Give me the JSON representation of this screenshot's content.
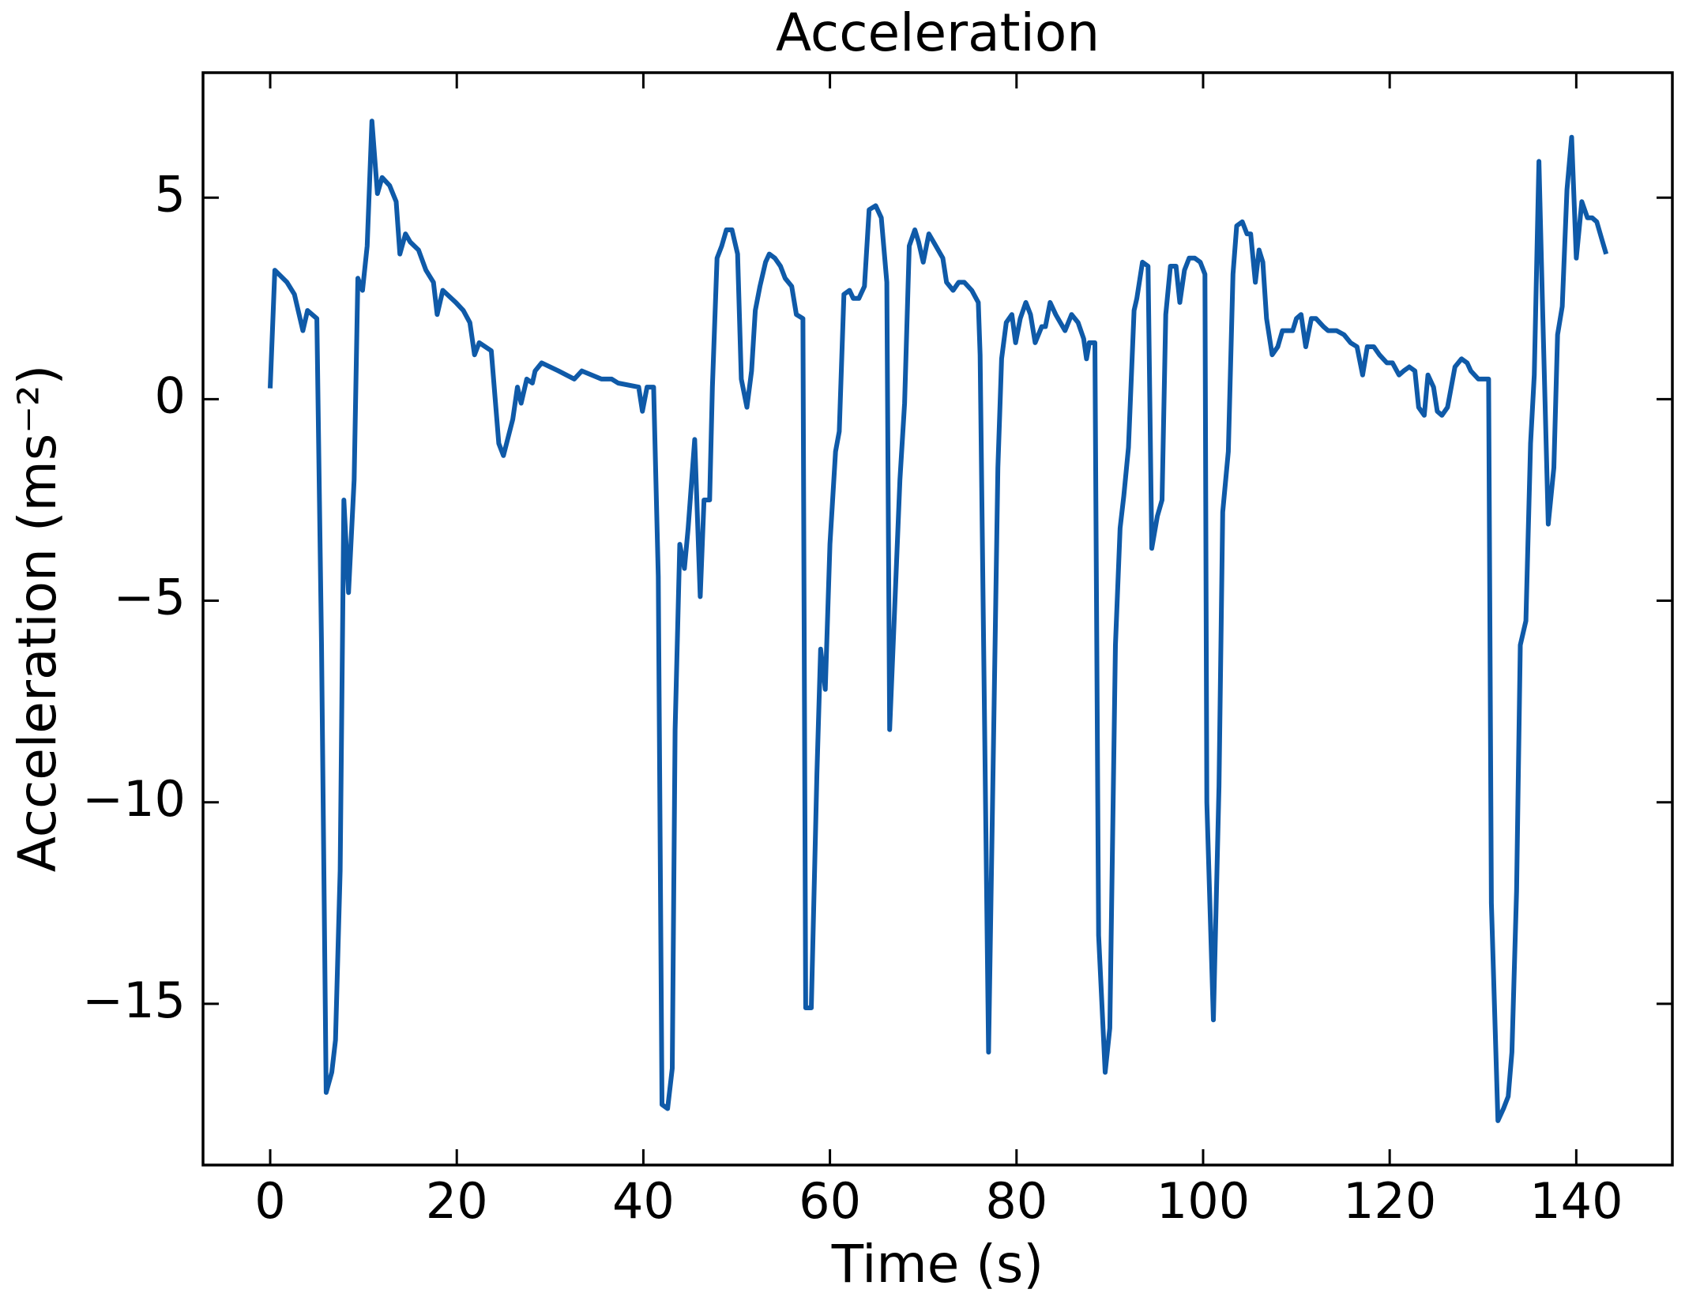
{
  "chart_data": {
    "type": "line",
    "title": "Acceleration",
    "xlabel": "Time (s)",
    "ylabel": "Acceleration (ms⁻²)",
    "xlim": [
      -7.2,
      150.3
    ],
    "ylim": [
      -19.0,
      8.1
    ],
    "xticks": [
      0,
      20,
      40,
      60,
      80,
      100,
      120,
      140
    ],
    "yticks": [
      {
        "value": -15,
        "label": "−15"
      },
      {
        "value": -10,
        "label": "−10"
      },
      {
        "value": -5,
        "label": "−5"
      },
      0,
      5
    ],
    "series": [
      {
        "color": "#0f5aa8",
        "x": [
          0,
          0.5,
          1.8,
          2.6,
          3.5,
          4,
          5,
          5.5,
          6,
          6.6,
          7,
          7.5,
          7.9,
          8.4,
          9,
          9.4,
          9.9,
          10.4,
          10.9,
          11.5,
          12,
          12.8,
          13.5,
          13.9,
          14.5,
          15,
          15.9,
          16.7,
          17.5,
          17.9,
          18.5,
          19.9,
          20.7,
          21.4,
          21.9,
          22.4,
          23.7,
          24.5,
          25,
          26,
          26.5,
          26.9,
          27.5,
          28.1,
          28.4,
          29.1,
          30.9,
          32.6,
          33.4,
          35.5,
          36.6,
          37.3,
          39.5,
          39.9,
          40.4,
          41.1,
          41.6,
          42,
          42.6,
          43.1,
          43.4,
          43.9,
          44.4,
          44.8,
          45.5,
          46.1,
          46.5,
          47.1,
          47.4,
          47.9,
          48.4,
          48.9,
          49.5,
          50.1,
          50.5,
          51.1,
          51.6,
          52,
          52.5,
          53.1,
          53.5,
          54.1,
          54.7,
          55.2,
          55.9,
          56.4,
          57.1,
          57.4,
          58,
          58.6,
          59,
          59.5,
          60,
          60.6,
          61,
          61.5,
          62.1,
          62.5,
          63.1,
          63.7,
          64.2,
          64.9,
          65.5,
          66.1,
          66.4,
          66.9,
          67.5,
          68,
          68.5,
          69.1,
          69.5,
          70,
          70.6,
          71.1,
          72.1,
          72.5,
          73.2,
          73.8,
          74.4,
          75.2,
          75.9,
          76.1,
          77,
          78,
          78.4,
          78.9,
          79.5,
          79.9,
          80.4,
          81,
          81.5,
          82,
          82.7,
          83.1,
          83.6,
          84.2,
          85.2,
          85.9,
          86.6,
          87.2,
          87.5,
          87.8,
          88.4,
          88.8,
          89.5,
          90,
          90.6,
          91.1,
          91.5,
          92,
          92.6,
          92.9,
          93.5,
          94.1,
          94.5,
          95.1,
          95.6,
          96,
          96.5,
          97.1,
          97.5,
          98,
          98.5,
          99.1,
          99.7,
          100.2,
          100.4,
          101.1,
          101.7,
          102.1,
          102.7,
          103.2,
          103.6,
          104.2,
          104.7,
          105.1,
          105.6,
          106,
          106.4,
          106.8,
          107.4,
          108,
          108.5,
          109,
          109.6,
          110,
          110.5,
          111,
          111.6,
          112.1,
          112.9,
          113.4,
          114.3,
          115.1,
          115.8,
          116.5,
          117.1,
          117.6,
          118.3,
          118.9,
          119.7,
          120.3,
          121,
          121.5,
          122.1,
          122.7,
          123.1,
          123.7,
          124.1,
          124.7,
          125.1,
          125.6,
          126.2,
          127,
          127.7,
          128.3,
          128.7,
          129.5,
          130.6,
          130.9,
          131.6,
          132.2,
          132.7,
          133.1,
          133.6,
          134,
          134.6,
          135.1,
          135.5,
          136,
          136.4,
          137,
          137.6,
          138,
          138.5,
          139,
          139.5,
          140,
          140.6,
          141.2,
          141.7,
          142.2,
          142.7,
          143.2
        ],
        "values": [
          0.27,
          3.2,
          2.9,
          2.6,
          1.7,
          2.2,
          2.0,
          -6.1,
          -17.2,
          -16.7,
          -15.9,
          -11.7,
          -2.5,
          -4.8,
          -2.0,
          3.0,
          2.7,
          3.8,
          6.9,
          5.1,
          5.5,
          5.3,
          4.9,
          3.6,
          4.1,
          3.9,
          3.7,
          3.2,
          2.9,
          2.1,
          2.7,
          2.4,
          2.2,
          1.9,
          1.1,
          1.4,
          1.2,
          -1.1,
          -1.4,
          -0.5,
          0.3,
          -0.1,
          0.5,
          0.4,
          0.7,
          0.9,
          0.7,
          0.5,
          0.7,
          0.5,
          0.5,
          0.4,
          0.3,
          -0.3,
          0.3,
          0.3,
          -4.4,
          -17.5,
          -17.6,
          -16.6,
          -8.2,
          -3.6,
          -4.2,
          -3.2,
          -1.0,
          -4.9,
          -2.5,
          -2.5,
          0.3,
          3.5,
          3.8,
          4.2,
          4.2,
          3.6,
          0.5,
          -0.2,
          0.7,
          2.2,
          2.8,
          3.4,
          3.6,
          3.5,
          3.3,
          3.0,
          2.8,
          2.1,
          2.0,
          -15.1,
          -15.1,
          -9.3,
          -6.2,
          -7.2,
          -3.6,
          -1.3,
          -0.8,
          2.6,
          2.7,
          2.5,
          2.5,
          2.8,
          4.7,
          4.8,
          4.5,
          2.9,
          -8.2,
          -5.4,
          -2.0,
          -0.1,
          3.8,
          4.2,
          3.9,
          3.4,
          4.1,
          3.9,
          3.5,
          2.9,
          2.7,
          2.9,
          2.9,
          2.7,
          2.4,
          1.1,
          -16.2,
          -1.7,
          1.0,
          1.9,
          2.1,
          1.4,
          2.0,
          2.4,
          2.1,
          1.4,
          1.8,
          1.8,
          2.4,
          2.1,
          1.7,
          2.1,
          1.9,
          1.5,
          1.0,
          1.4,
          1.4,
          -13.3,
          -16.7,
          -15.6,
          -6.1,
          -3.2,
          -2.4,
          -1.2,
          2.2,
          2.5,
          3.4,
          3.3,
          -3.7,
          -2.9,
          -2.5,
          2.1,
          3.3,
          3.3,
          2.4,
          3.2,
          3.5,
          3.5,
          3.4,
          3.1,
          -10.0,
          -15.4,
          -9.6,
          -2.8,
          -1.3,
          3.1,
          4.3,
          4.4,
          4.1,
          4.1,
          2.9,
          3.7,
          3.4,
          2.0,
          1.1,
          1.3,
          1.7,
          1.7,
          1.7,
          2.0,
          2.1,
          1.3,
          2.0,
          2.0,
          1.8,
          1.7,
          1.7,
          1.6,
          1.4,
          1.3,
          0.6,
          1.3,
          1.3,
          1.1,
          0.9,
          0.9,
          0.6,
          0.7,
          0.8,
          0.7,
          -0.2,
          -0.4,
          0.6,
          0.3,
          -0.3,
          -0.4,
          -0.2,
          0.8,
          1.0,
          0.9,
          0.7,
          0.5,
          0.5,
          -12.5,
          -17.9,
          -17.6,
          -17.3,
          -16.2,
          -12.2,
          -6.1,
          -5.5,
          -1.1,
          0.6,
          5.9,
          2.2,
          -3.1,
          -1.7,
          1.6,
          2.3,
          5.2,
          6.5,
          3.5,
          4.9,
          4.5,
          4.5,
          4.4,
          4.0,
          3.6
        ]
      }
    ]
  }
}
